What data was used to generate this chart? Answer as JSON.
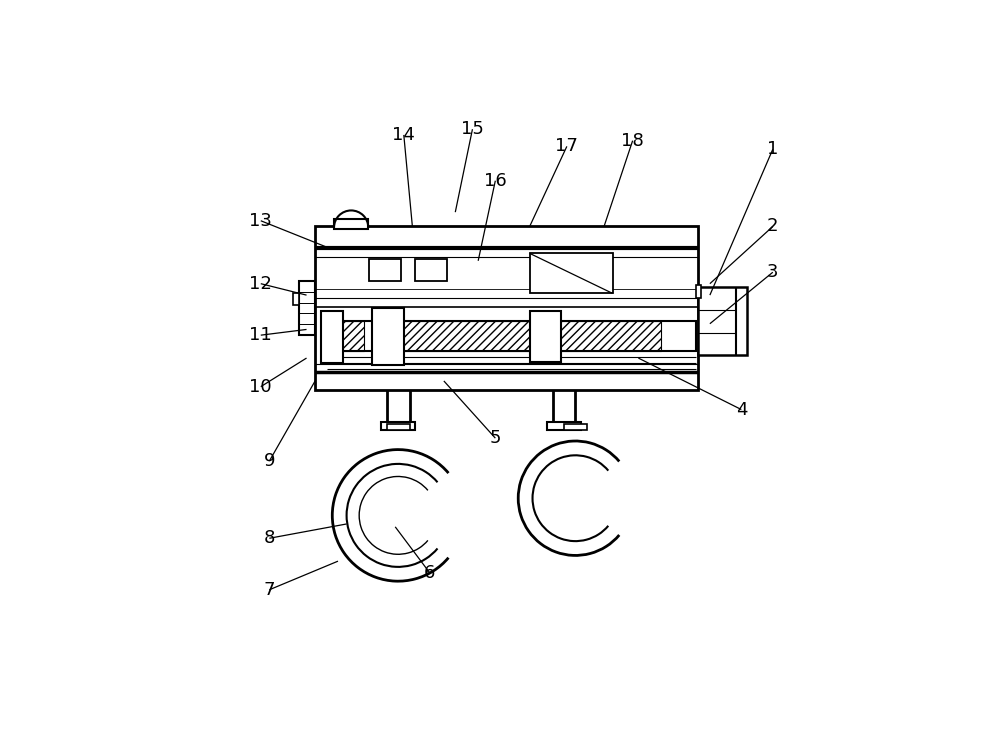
{
  "bg_color": "#ffffff",
  "lc": "#000000",
  "lw": 1.5,
  "figsize": [
    10.0,
    7.43
  ],
  "dpi": 100,
  "labels_coords": {
    "1": [
      0.955,
      0.895,
      0.845,
      0.64
    ],
    "2": [
      0.955,
      0.76,
      0.845,
      0.66
    ],
    "3": [
      0.955,
      0.68,
      0.845,
      0.59
    ],
    "4": [
      0.9,
      0.44,
      0.72,
      0.53
    ],
    "5": [
      0.47,
      0.39,
      0.38,
      0.49
    ],
    "6": [
      0.355,
      0.155,
      0.295,
      0.235
    ],
    "7": [
      0.075,
      0.125,
      0.195,
      0.175
    ],
    "8": [
      0.075,
      0.215,
      0.21,
      0.24
    ],
    "9": [
      0.075,
      0.35,
      0.155,
      0.49
    ],
    "10": [
      0.06,
      0.48,
      0.14,
      0.53
    ],
    "11": [
      0.06,
      0.57,
      0.14,
      0.58
    ],
    "12": [
      0.06,
      0.66,
      0.14,
      0.64
    ],
    "13": [
      0.06,
      0.77,
      0.185,
      0.72
    ],
    "14": [
      0.31,
      0.92,
      0.325,
      0.76
    ],
    "15": [
      0.43,
      0.93,
      0.4,
      0.785
    ],
    "16": [
      0.47,
      0.84,
      0.44,
      0.7
    ],
    "17": [
      0.595,
      0.9,
      0.53,
      0.76
    ],
    "18": [
      0.71,
      0.91,
      0.66,
      0.76
    ]
  }
}
